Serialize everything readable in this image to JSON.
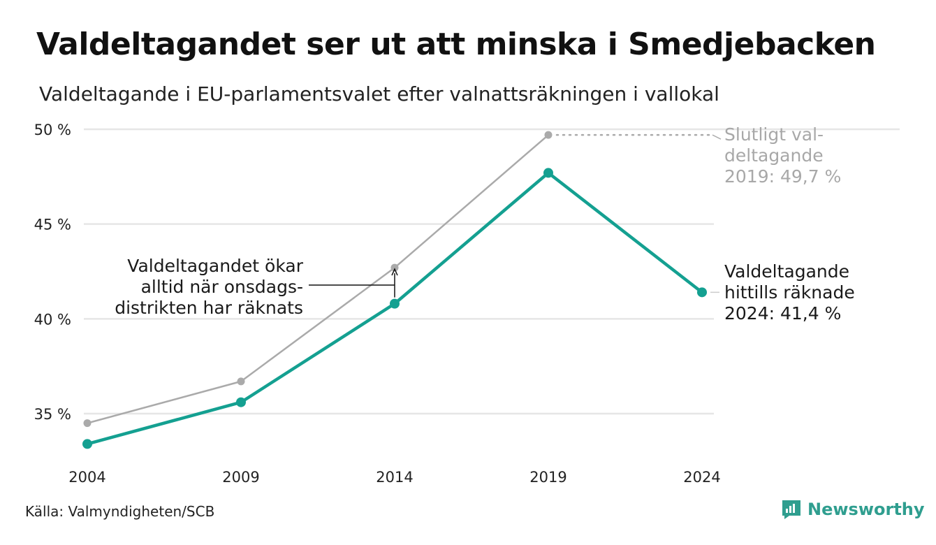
{
  "title": "Valdeltagandet ser ut att minska i Smedjebacken",
  "subtitle": "Valdeltagande i EU-parlamentsvalet efter valnattsräkningen i vallokal",
  "source": "Källa: Valmyndigheten/SCB",
  "logo": {
    "text": "Newsworthy",
    "icon": "newsworthy-logo-icon"
  },
  "colors": {
    "counted": "#14a091",
    "final": "#aaaaaa",
    "grid": "#e6e6e6"
  },
  "chart_data": {
    "type": "line",
    "x": [
      2004,
      2009,
      2014,
      2019,
      2024
    ],
    "ylim": [
      33,
      50
    ],
    "yticks": [
      35,
      40,
      45,
      50
    ],
    "ytick_labels": [
      "35 %",
      "40 %",
      "45 %",
      "50 %"
    ],
    "xtick_labels": [
      "2004",
      "2009",
      "2014",
      "2019",
      "2024"
    ],
    "grid": true,
    "series": [
      {
        "key": "final",
        "values": [
          34.5,
          36.7,
          42.7,
          49.7,
          null
        ]
      },
      {
        "key": "counted",
        "values": [
          33.4,
          35.6,
          40.8,
          47.7,
          41.4
        ]
      }
    ],
    "annotations": {
      "final": [
        "Slutligt val-",
        "deltagande",
        "2019: 49,7 %"
      ],
      "counted": [
        "Valdeltagande",
        "hittills räknade",
        "2024: 41,4 %"
      ],
      "wednesday": [
        "Valdeltagandet ökar",
        "alltid när onsdags-",
        "distrikten har räknats"
      ]
    }
  }
}
